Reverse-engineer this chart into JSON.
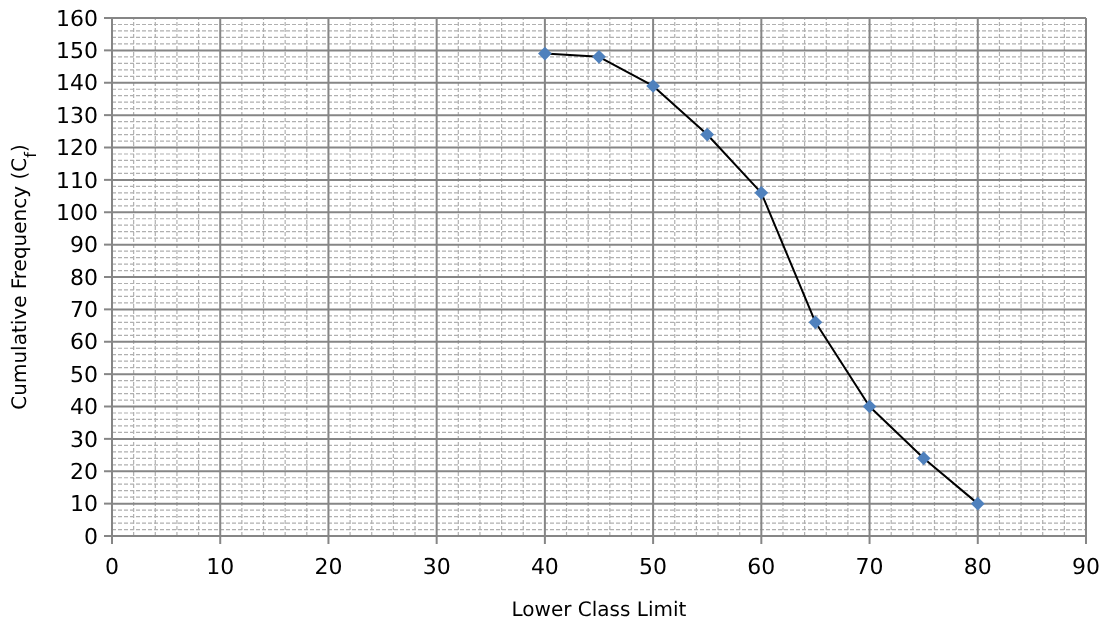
{
  "chart_data": {
    "type": "line",
    "xlabel": "Lower Class Limit",
    "ylabel": "Cumulative Frequency (C$_{f}$)",
    "x": [
      40,
      45,
      50,
      55,
      60,
      65,
      70,
      75,
      80
    ],
    "series": [
      {
        "color": "#4f81bd",
        "values": [
          149,
          148,
          139,
          124,
          106,
          66,
          40,
          24,
          10
        ]
      }
    ],
    "xlim": [
      0,
      90
    ],
    "xticks": [
      0,
      10,
      20,
      30,
      40,
      50,
      60,
      70,
      80,
      90
    ],
    "ylim": [
      0,
      160
    ],
    "yticks": [
      0,
      10,
      20,
      30,
      40,
      50,
      60,
      70,
      80,
      90,
      100,
      110,
      120,
      130,
      140,
      150,
      160
    ],
    "grid": true,
    "marker": "diamond",
    "line_style": "solid"
  }
}
